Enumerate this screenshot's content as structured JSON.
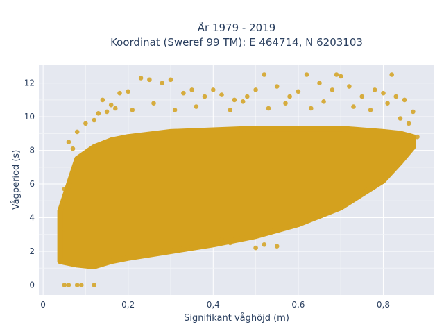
{
  "chart_data": {
    "type": "scatter",
    "title_line1": "År 1979 - 2019",
    "title_line2": "Koordinat (Sweref 99 TM): E 464714, N 6203103",
    "xlabel": "Signifikant våghöjd (m)",
    "ylabel": "Vågperiod (s)",
    "xlim": [
      -0.01,
      0.92
    ],
    "ylim": [
      -0.6,
      13.1
    ],
    "xticks": [
      0,
      0.2,
      0.4,
      0.6,
      0.8
    ],
    "xtick_labels": [
      "0",
      "0,2",
      "0,4",
      "0,6",
      "0,8"
    ],
    "yticks": [
      0,
      2,
      4,
      6,
      8,
      10,
      12
    ],
    "ytick_labels": [
      "0",
      "2",
      "4",
      "6",
      "8",
      "10",
      "12"
    ],
    "grid": true,
    "marker_color": "#d4a11e",
    "plot_bgcolor": "#e5e8f0",
    "density_envelope": {
      "x": [
        0.04,
        0.08,
        0.12,
        0.16,
        0.2,
        0.3,
        0.4,
        0.5,
        0.6,
        0.7,
        0.8,
        0.84,
        0.87
      ],
      "y_low": [
        1.4,
        1.2,
        1.1,
        1.4,
        1.6,
        2.0,
        2.4,
        2.9,
        3.6,
        4.6,
        6.2,
        7.3,
        8.2
      ],
      "y_high": [
        4.4,
        7.5,
        8.2,
        8.6,
        8.8,
        9.1,
        9.2,
        9.3,
        9.3,
        9.3,
        9.1,
        9.0,
        8.8
      ]
    },
    "scattered_points": [
      {
        "x": 0.05,
        "y": 0.0
      },
      {
        "x": 0.06,
        "y": 0.0
      },
      {
        "x": 0.08,
        "y": 0.0
      },
      {
        "x": 0.09,
        "y": 0.0
      },
      {
        "x": 0.12,
        "y": 0.0
      },
      {
        "x": 0.06,
        "y": 8.5
      },
      {
        "x": 0.1,
        "y": 9.6
      },
      {
        "x": 0.12,
        "y": 9.8
      },
      {
        "x": 0.15,
        "y": 10.3
      },
      {
        "x": 0.16,
        "y": 10.7
      },
      {
        "x": 0.18,
        "y": 11.4
      },
      {
        "x": 0.2,
        "y": 11.5
      },
      {
        "x": 0.23,
        "y": 12.3
      },
      {
        "x": 0.25,
        "y": 12.2
      },
      {
        "x": 0.28,
        "y": 12.0
      },
      {
        "x": 0.3,
        "y": 12.2
      },
      {
        "x": 0.33,
        "y": 11.4
      },
      {
        "x": 0.35,
        "y": 11.6
      },
      {
        "x": 0.38,
        "y": 11.2
      },
      {
        "x": 0.4,
        "y": 11.6
      },
      {
        "x": 0.42,
        "y": 11.3
      },
      {
        "x": 0.45,
        "y": 11.0
      },
      {
        "x": 0.48,
        "y": 11.2
      },
      {
        "x": 0.5,
        "y": 11.6
      },
      {
        "x": 0.52,
        "y": 12.5
      },
      {
        "x": 0.55,
        "y": 11.8
      },
      {
        "x": 0.58,
        "y": 11.2
      },
      {
        "x": 0.6,
        "y": 11.5
      },
      {
        "x": 0.62,
        "y": 12.5
      },
      {
        "x": 0.65,
        "y": 12.0
      },
      {
        "x": 0.68,
        "y": 11.6
      },
      {
        "x": 0.69,
        "y": 12.5
      },
      {
        "x": 0.7,
        "y": 12.4
      },
      {
        "x": 0.72,
        "y": 11.8
      },
      {
        "x": 0.75,
        "y": 11.2
      },
      {
        "x": 0.78,
        "y": 11.6
      },
      {
        "x": 0.8,
        "y": 11.4
      },
      {
        "x": 0.82,
        "y": 12.5
      },
      {
        "x": 0.83,
        "y": 11.2
      },
      {
        "x": 0.85,
        "y": 11.0
      },
      {
        "x": 0.87,
        "y": 10.3
      },
      {
        "x": 0.88,
        "y": 8.8
      },
      {
        "x": 0.05,
        "y": 3.3
      },
      {
        "x": 0.04,
        "y": 2.6
      },
      {
        "x": 0.05,
        "y": 5.7
      },
      {
        "x": 0.07,
        "y": 8.1
      },
      {
        "x": 0.08,
        "y": 9.1
      },
      {
        "x": 0.5,
        "y": 2.2
      },
      {
        "x": 0.52,
        "y": 2.4
      },
      {
        "x": 0.55,
        "y": 2.3
      },
      {
        "x": 0.34,
        "y": 2.3
      },
      {
        "x": 0.42,
        "y": 2.7
      },
      {
        "x": 0.44,
        "y": 2.5
      },
      {
        "x": 0.13,
        "y": 10.2
      },
      {
        "x": 0.14,
        "y": 11.0
      },
      {
        "x": 0.17,
        "y": 10.5
      },
      {
        "x": 0.21,
        "y": 10.4
      },
      {
        "x": 0.26,
        "y": 10.8
      },
      {
        "x": 0.31,
        "y": 10.4
      },
      {
        "x": 0.36,
        "y": 10.6
      },
      {
        "x": 0.44,
        "y": 10.4
      },
      {
        "x": 0.47,
        "y": 10.9
      },
      {
        "x": 0.53,
        "y": 10.5
      },
      {
        "x": 0.57,
        "y": 10.8
      },
      {
        "x": 0.63,
        "y": 10.5
      },
      {
        "x": 0.66,
        "y": 10.9
      },
      {
        "x": 0.73,
        "y": 10.6
      },
      {
        "x": 0.77,
        "y": 10.4
      },
      {
        "x": 0.81,
        "y": 10.8
      },
      {
        "x": 0.86,
        "y": 9.6
      },
      {
        "x": 0.84,
        "y": 9.9
      }
    ]
  }
}
